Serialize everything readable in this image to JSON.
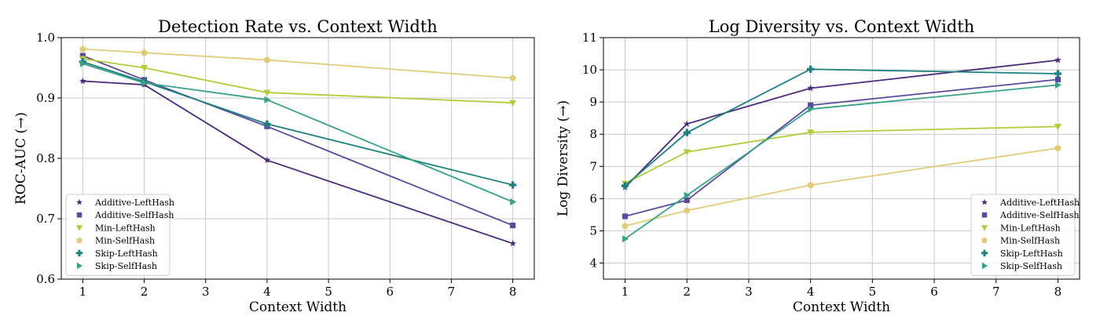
{
  "chart_data": [
    {
      "type": "line",
      "title": "Detection Rate vs. Context Width",
      "xlabel": "Context Width",
      "ylabel": "ROC-AUC (→)",
      "xlim": [
        0.65,
        8.35
      ],
      "ylim": [
        0.6,
        1.0
      ],
      "xticks": [
        1,
        2,
        3,
        4,
        5,
        6,
        7,
        8
      ],
      "yticks": [
        0.6,
        0.7,
        0.8,
        0.9,
        1.0
      ],
      "ytick_labels": [
        "0.6",
        "0.7",
        "0.8",
        "0.9",
        "1.0"
      ],
      "grid": true,
      "legend": "lower-left",
      "series": [
        {
          "name": "Additive-LeftHash",
          "color": "#4b2a78",
          "marker": "star",
          "x": [
            1,
            2,
            4,
            8
          ],
          "y": [
            0.928,
            0.922,
            0.797,
            0.659
          ]
        },
        {
          "name": "Additive-SelfHash",
          "color": "#5b4a9c",
          "marker": "square",
          "x": [
            1,
            2,
            4,
            8
          ],
          "y": [
            0.97,
            0.93,
            0.853,
            0.689
          ]
        },
        {
          "name": "Min-LeftHash",
          "color": "#b5c93a",
          "marker": "triangle-down",
          "x": [
            1,
            2,
            4,
            8
          ],
          "y": [
            0.965,
            0.95,
            0.909,
            0.892
          ]
        },
        {
          "name": "Min-SelfHash",
          "color": "#e0cc78",
          "marker": "pentagon",
          "x": [
            1,
            2,
            4,
            8
          ],
          "y": [
            0.981,
            0.975,
            0.963,
            0.933
          ]
        },
        {
          "name": "Skip-LeftHash",
          "color": "#1f7f7f",
          "marker": "plus",
          "x": [
            1,
            2,
            4,
            8
          ],
          "y": [
            0.96,
            0.927,
            0.857,
            0.756
          ]
        },
        {
          "name": "Skip-SelfHash",
          "color": "#3aa088",
          "marker": "triangle-right",
          "x": [
            1,
            2,
            4,
            8
          ],
          "y": [
            0.957,
            0.925,
            0.897,
            0.728
          ]
        }
      ]
    },
    {
      "type": "line",
      "title": "Log Diversity vs. Context Width",
      "xlabel": "Context Width",
      "ylabel": "Log Diversity (→)",
      "xlim": [
        0.65,
        8.35
      ],
      "ylim": [
        3.5,
        11.0
      ],
      "xticks": [
        1,
        2,
        3,
        4,
        5,
        6,
        7,
        8
      ],
      "yticks": [
        4,
        5,
        6,
        7,
        8,
        9,
        10,
        11
      ],
      "ytick_labels": [
        "4",
        "5",
        "6",
        "7",
        "8",
        "9",
        "10",
        "11"
      ],
      "grid": true,
      "legend": "lower-right",
      "series": [
        {
          "name": "Additive-LeftHash",
          "color": "#4b2a78",
          "marker": "star",
          "x": [
            1,
            2,
            4,
            8
          ],
          "y": [
            6.35,
            8.32,
            9.43,
            10.3
          ]
        },
        {
          "name": "Additive-SelfHash",
          "color": "#5b4a9c",
          "marker": "square",
          "x": [
            1,
            2,
            4,
            8
          ],
          "y": [
            5.45,
            5.95,
            8.9,
            9.7
          ]
        },
        {
          "name": "Min-LeftHash",
          "color": "#b5c93a",
          "marker": "triangle-down",
          "x": [
            1,
            2,
            4,
            8
          ],
          "y": [
            6.47,
            7.45,
            8.06,
            8.24
          ]
        },
        {
          "name": "Min-SelfHash",
          "color": "#e0cc78",
          "marker": "pentagon",
          "x": [
            1,
            2,
            4,
            8
          ],
          "y": [
            5.15,
            5.63,
            6.42,
            7.57
          ]
        },
        {
          "name": "Skip-LeftHash",
          "color": "#1f7f7f",
          "marker": "plus",
          "x": [
            1,
            2,
            4,
            8
          ],
          "y": [
            6.4,
            8.05,
            10.02,
            9.88
          ]
        },
        {
          "name": "Skip-SelfHash",
          "color": "#3aa088",
          "marker": "triangle-right",
          "x": [
            1,
            2,
            4,
            8
          ],
          "y": [
            4.75,
            6.1,
            8.78,
            9.53
          ]
        }
      ]
    }
  ]
}
